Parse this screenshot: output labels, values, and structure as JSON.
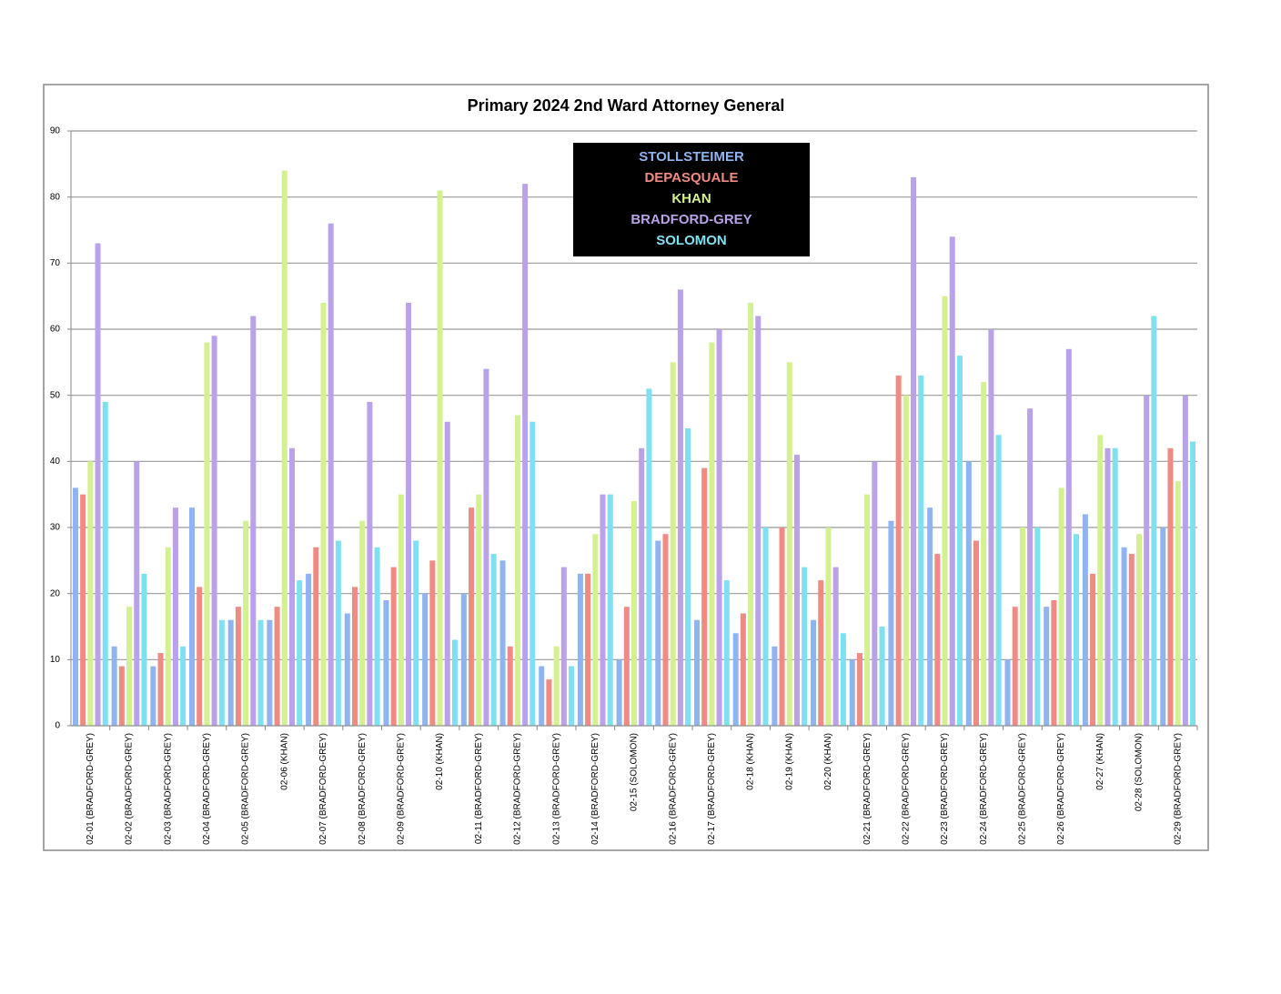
{
  "chart_data": {
    "type": "bar",
    "title": "Primary 2024 2nd Ward Attorney General",
    "categories": [
      "02-01 (BRADFORD-GREY)",
      "02-02 (BRADFORD-GREY)",
      "02-03 (BRADFORD-GREY)",
      "02-04 (BRADFORD-GREY)",
      "02-05 (BRADFORD-GREY)",
      "02-06 (KHAN)",
      "02-07 (BRADFORD-GREY)",
      "02-08 (BRADFORD-GREY)",
      "02-09 (BRADFORD-GREY)",
      "02-10 (KHAN)",
      "02-11 (BRADFORD-GREY)",
      "02-12 (BRADFORD-GREY)",
      "02-13 (BRADFORD-GREY)",
      "02-14 (BRADFORD-GREY)",
      "02-15 (SOLOMON)",
      "02-16 (BRADFORD-GREY)",
      "02-17 (BRADFORD-GREY)",
      "02-18 (KHAN)",
      "02-19 (KHAN)",
      "02-20 (KHAN)",
      "02-21 (BRADFORD-GREY)",
      "02-22 (BRADFORD-GREY)",
      "02-23 (BRADFORD-GREY)",
      "02-24 (BRADFORD-GREY)",
      "02-25 (BRADFORD-GREY)",
      "02-26 (BRADFORD-GREY)",
      "02-27 (KHAN)",
      "02-28 (SOLOMON)",
      "02-29 (BRADFORD-GREY)"
    ],
    "series": [
      {
        "name": "STOLLSTEIMER",
        "color": "#8fb4f0",
        "values": [
          36,
          12,
          9,
          33,
          16,
          16,
          23,
          17,
          19,
          20,
          20,
          25,
          9,
          23,
          10,
          28,
          16,
          14,
          12,
          16,
          10,
          31,
          33,
          40,
          10,
          18,
          32,
          27,
          30
        ]
      },
      {
        "name": "DEPASQUALE",
        "color": "#f08a84",
        "values": [
          35,
          9,
          11,
          21,
          18,
          18,
          27,
          21,
          24,
          25,
          33,
          12,
          7,
          23,
          18,
          29,
          39,
          17,
          30,
          22,
          11,
          53,
          26,
          28,
          18,
          19,
          23,
          26,
          42
        ]
      },
      {
        "name": "KHAN",
        "color": "#d4f090",
        "values": [
          40,
          18,
          27,
          58,
          31,
          84,
          64,
          31,
          35,
          81,
          35,
          47,
          12,
          29,
          34,
          55,
          58,
          64,
          55,
          30,
          35,
          50,
          65,
          52,
          30,
          36,
          44,
          29,
          37
        ]
      },
      {
        "name": "BRADFORD-GREY",
        "color": "#b9a2e8",
        "values": [
          73,
          40,
          33,
          59,
          62,
          42,
          76,
          49,
          64,
          46,
          54,
          82,
          24,
          35,
          42,
          66,
          60,
          62,
          41,
          24,
          40,
          83,
          74,
          60,
          48,
          57,
          42,
          50,
          50
        ]
      },
      {
        "name": "SOLOMON",
        "color": "#7fe0f0",
        "values": [
          49,
          23,
          12,
          16,
          16,
          22,
          28,
          27,
          28,
          13,
          26,
          46,
          9,
          35,
          51,
          45,
          22,
          30,
          24,
          14,
          15,
          53,
          56,
          44,
          30,
          29,
          42,
          62,
          43
        ]
      }
    ],
    "ylim": [
      0,
      90
    ],
    "yticks": [
      0,
      10,
      20,
      30,
      40,
      50,
      60,
      70,
      80,
      90
    ],
    "grid": true,
    "legend": "top-center"
  }
}
